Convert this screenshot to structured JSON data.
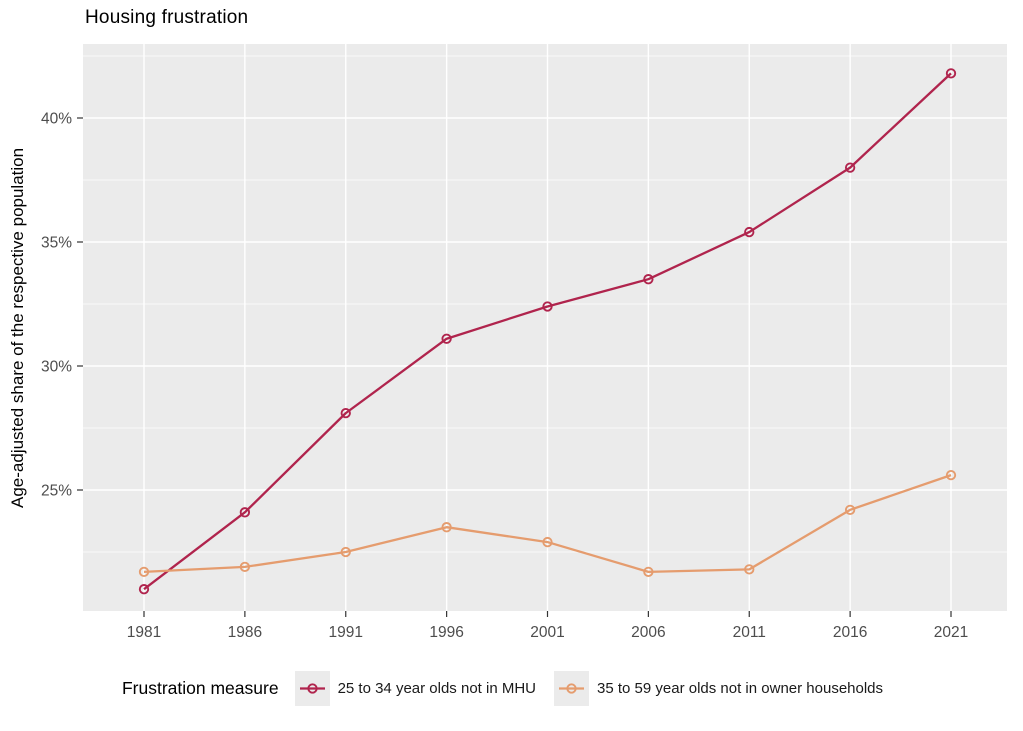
{
  "chart_data": {
    "type": "line",
    "title": "Housing frustration",
    "ylabel": "Age-adjusted share of the respective population",
    "xlabel": "",
    "legend_title": "Frustration measure",
    "legend_position": "bottom",
    "x": [
      1981,
      1986,
      1991,
      1996,
      2001,
      2006,
      2011,
      2016,
      2021
    ],
    "x_tick_labels": [
      "1981",
      "1986",
      "1991",
      "1996",
      "2001",
      "2006",
      "2011",
      "2016",
      "2021"
    ],
    "y_ticks": [
      25,
      30,
      35,
      40
    ],
    "y_tick_labels": [
      "25%",
      "30%",
      "35%",
      "40%"
    ],
    "y_minor_ticks": [
      22.5,
      27.5,
      32.5,
      37.5,
      42.5
    ],
    "ylim": [
      20.1,
      43.0
    ],
    "xlim": [
      1978,
      2023.8
    ],
    "grid": "white major+minor horizontal and major vertical gridlines on gray panel",
    "series": [
      {
        "name": "25 to 34 year olds not in MHU",
        "color": "#B0244D",
        "marker": "open-circle",
        "values": [
          21.0,
          24.1,
          28.1,
          31.1,
          32.4,
          33.5,
          35.4,
          38.0,
          41.8
        ]
      },
      {
        "name": "35 to 59 year olds not in owner households",
        "color": "#E59C6E",
        "marker": "open-circle",
        "values": [
          21.7,
          21.9,
          22.5,
          23.5,
          22.9,
          21.7,
          21.8,
          24.2,
          25.6
        ]
      }
    ],
    "colors": {
      "panel_bg": "#EBEBEB",
      "grid": "#FFFFFF",
      "tick_label": "#4D4D4D",
      "tick_mark": "#333333",
      "title_text": "#000000"
    }
  }
}
